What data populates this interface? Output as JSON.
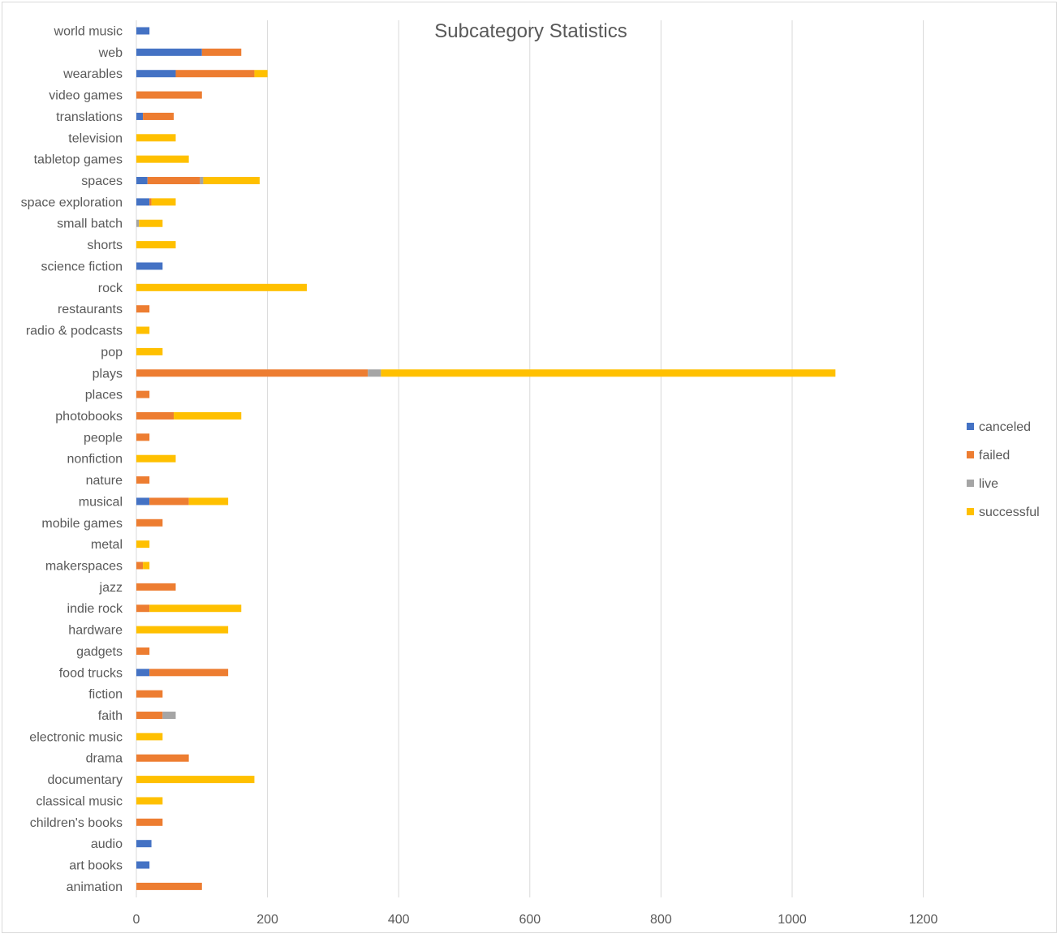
{
  "chart_data": {
    "type": "bar",
    "orientation": "horizontal",
    "stacked": true,
    "title": "Subcategory Statistics",
    "xlabel": "",
    "ylabel": "",
    "xlim": [
      0,
      1300
    ],
    "xticks": [
      0,
      200,
      400,
      600,
      800,
      1000,
      1200
    ],
    "grid": true,
    "legend_position": "right",
    "categories": [
      "world music",
      "web",
      "wearables",
      "video games",
      "translations",
      "television",
      "tabletop games",
      "spaces",
      "space exploration",
      "small batch",
      "shorts",
      "science fiction",
      "rock",
      "restaurants",
      "radio & podcasts",
      "pop",
      "plays",
      "places",
      "photobooks",
      "people",
      "nonfiction",
      "nature",
      "musical",
      "mobile games",
      "metal",
      "makerspaces",
      "jazz",
      "indie rock",
      "hardware",
      "gadgets",
      "food trucks",
      "fiction",
      "faith",
      "electronic music",
      "drama",
      "documentary",
      "classical music",
      "children's books",
      "audio",
      "art books",
      "animation"
    ],
    "series": [
      {
        "name": "canceled",
        "color": "#4472C4",
        "values": [
          20,
          100,
          60,
          0,
          10,
          0,
          0,
          17,
          20,
          0,
          0,
          40,
          0,
          0,
          0,
          0,
          0,
          0,
          0,
          0,
          0,
          0,
          20,
          0,
          0,
          0,
          0,
          0,
          0,
          0,
          20,
          0,
          0,
          0,
          0,
          0,
          0,
          0,
          23,
          20,
          0
        ]
      },
      {
        "name": "failed",
        "color": "#ED7D31",
        "values": [
          0,
          60,
          120,
          100,
          47,
          0,
          0,
          80,
          3,
          0,
          0,
          0,
          0,
          20,
          0,
          0,
          353,
          20,
          57,
          20,
          0,
          20,
          60,
          40,
          0,
          10,
          60,
          20,
          0,
          20,
          120,
          40,
          40,
          0,
          80,
          0,
          0,
          40,
          0,
          0,
          100
        ]
      },
      {
        "name": "live",
        "color": "#A5A5A5",
        "values": [
          0,
          0,
          0,
          0,
          0,
          0,
          0,
          5,
          0,
          4,
          0,
          0,
          0,
          0,
          0,
          0,
          20,
          0,
          0,
          0,
          0,
          0,
          0,
          0,
          0,
          0,
          0,
          0,
          0,
          0,
          0,
          0,
          20,
          0,
          0,
          0,
          0,
          0,
          0,
          0,
          0
        ]
      },
      {
        "name": "successful",
        "color": "#FFC000",
        "values": [
          0,
          0,
          20,
          0,
          0,
          60,
          80,
          86,
          37,
          36,
          60,
          0,
          260,
          0,
          20,
          40,
          693,
          0,
          103,
          0,
          60,
          0,
          60,
          0,
          20,
          10,
          0,
          140,
          140,
          0,
          0,
          0,
          0,
          40,
          0,
          180,
          40,
          0,
          0,
          0,
          0
        ]
      }
    ]
  }
}
